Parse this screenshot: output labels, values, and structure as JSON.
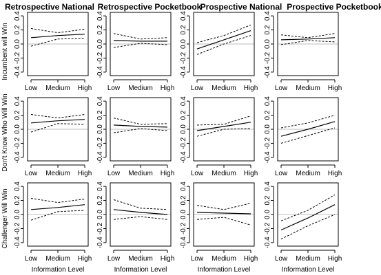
{
  "chart_data": {
    "type": "line",
    "columns": [
      "Retrospective National",
      "Retrospective Pocketbook",
      "Prospective National",
      "Prospective Pocketbook"
    ],
    "rows": [
      "Incumbent will Win",
      "Don't Know Who Will Win",
      "Challenger Will Win"
    ],
    "x_categories": [
      "Low",
      "Medium",
      "High"
    ],
    "xlabel": "Information Level",
    "y_ticks": [
      "-0.4",
      "-0.2",
      "0.0",
      "0.2",
      "0.4"
    ],
    "ylim": [
      -0.45,
      0.45
    ],
    "zero_reference_line": true,
    "panels": [
      {
        "row": 0,
        "col": 0,
        "estimate": [
          0.09,
          0.12,
          0.14
        ],
        "upper": [
          0.22,
          0.16,
          0.21
        ],
        "lower": [
          -0.03,
          0.07,
          0.08
        ]
      },
      {
        "row": 0,
        "col": 1,
        "estimate": [
          0.05,
          0.04,
          0.04
        ],
        "upper": [
          0.15,
          0.07,
          0.09
        ],
        "lower": [
          -0.05,
          0.01,
          -0.01
        ]
      },
      {
        "row": 0,
        "col": 2,
        "estimate": [
          -0.07,
          0.06,
          0.19
        ],
        "upper": [
          0.02,
          0.12,
          0.27
        ],
        "lower": [
          -0.15,
          0.0,
          0.12
        ]
      },
      {
        "row": 0,
        "col": 3,
        "estimate": [
          0.06,
          0.07,
          0.09
        ],
        "upper": [
          0.13,
          0.09,
          0.15
        ],
        "lower": [
          -0.01,
          0.05,
          0.03
        ]
      },
      {
        "row": 1,
        "col": 0,
        "estimate": [
          0.09,
          0.12,
          0.14
        ],
        "upper": [
          0.21,
          0.16,
          0.21
        ],
        "lower": [
          -0.04,
          0.08,
          0.07
        ]
      },
      {
        "row": 1,
        "col": 1,
        "estimate": [
          0.06,
          0.04,
          0.03
        ],
        "upper": [
          0.16,
          0.07,
          0.08
        ],
        "lower": [
          -0.05,
          0.01,
          -0.02
        ]
      },
      {
        "row": 1,
        "col": 2,
        "estimate": [
          -0.02,
          0.04,
          0.1
        ],
        "upper": [
          0.06,
          0.07,
          0.19
        ],
        "lower": [
          -0.1,
          0.0,
          0.01
        ]
      },
      {
        "row": 1,
        "col": 3,
        "estimate": [
          -0.1,
          0.0,
          0.11
        ],
        "upper": [
          0.02,
          0.09,
          0.2
        ],
        "lower": [
          -0.2,
          -0.09,
          0.02
        ]
      },
      {
        "row": 2,
        "col": 0,
        "estimate": [
          0.07,
          0.1,
          0.14
        ],
        "upper": [
          0.23,
          0.17,
          0.22
        ],
        "lower": [
          -0.08,
          0.04,
          0.06
        ]
      },
      {
        "row": 2,
        "col": 1,
        "estimate": [
          0.07,
          0.03,
          0.0
        ],
        "upper": [
          0.21,
          0.09,
          0.07
        ],
        "lower": [
          -0.07,
          -0.03,
          -0.07
        ]
      },
      {
        "row": 2,
        "col": 2,
        "estimate": [
          0.03,
          0.02,
          0.01
        ],
        "upper": [
          0.13,
          0.07,
          0.16
        ],
        "lower": [
          -0.07,
          -0.04,
          -0.15
        ]
      },
      {
        "row": 2,
        "col": 3,
        "estimate": [
          -0.22,
          -0.05,
          0.14
        ],
        "upper": [
          -0.09,
          0.06,
          0.28
        ],
        "lower": [
          -0.35,
          -0.16,
          0.0
        ]
      }
    ]
  }
}
